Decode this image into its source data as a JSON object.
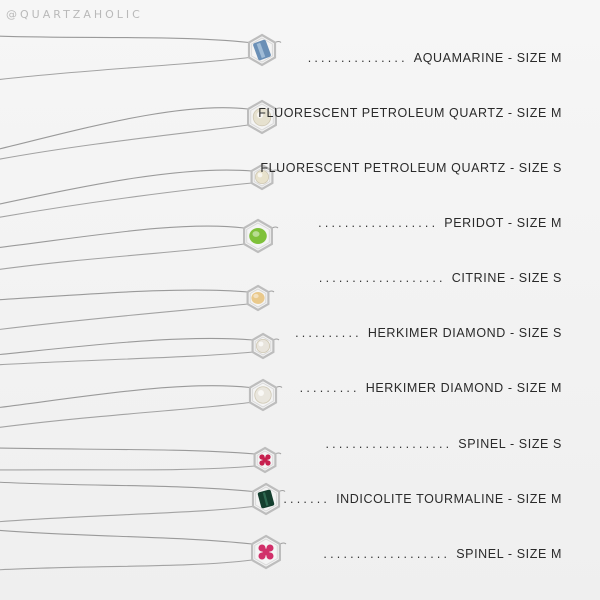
{
  "watermark": "@QUARTZAHOLIC",
  "items": [
    {
      "dots": "...............",
      "label": "AQUAMARINE - SIZE M",
      "gem_color": "#6a8fb6",
      "gem": "crystal"
    },
    {
      "dots": "",
      "label": "FLUORESCENT PETROLEUM QUARTZ - SIZE M",
      "gem_color": "#e6e1cf",
      "gem": "clear"
    },
    {
      "dots": "",
      "label": "FLUORESCENT PETROLEUM QUARTZ - SIZE S",
      "gem_color": "#e8e2cc",
      "gem": "clear"
    },
    {
      "dots": "..................",
      "label": "PERIDOT - SIZE M",
      "gem_color": "#7fc13a",
      "gem": "faceted"
    },
    {
      "dots": "...................",
      "label": "CITRINE - SIZE S",
      "gem_color": "#e9c98c",
      "gem": "faceted"
    },
    {
      "dots": "..........",
      "label": "HERKIMER DIAMOND - SIZE S",
      "gem_color": "#e8e4dc",
      "gem": "clear"
    },
    {
      "dots": ".........",
      "label": "HERKIMER DIAMOND - SIZE M",
      "gem_color": "#e9e6de",
      "gem": "clear"
    },
    {
      "dots": "...................",
      "label": "SPINEL - SIZE S",
      "gem_color": "#c7204f",
      "gem": "cluster"
    },
    {
      "dots": ".......",
      "label": "INDICOLITE TOURMALINE - SIZE M",
      "gem_color": "#153f2f",
      "gem": "dark"
    },
    {
      "dots": "...................",
      "label": "SPINEL - SIZE M",
      "gem_color": "#d1306a",
      "gem": "cluster"
    }
  ]
}
